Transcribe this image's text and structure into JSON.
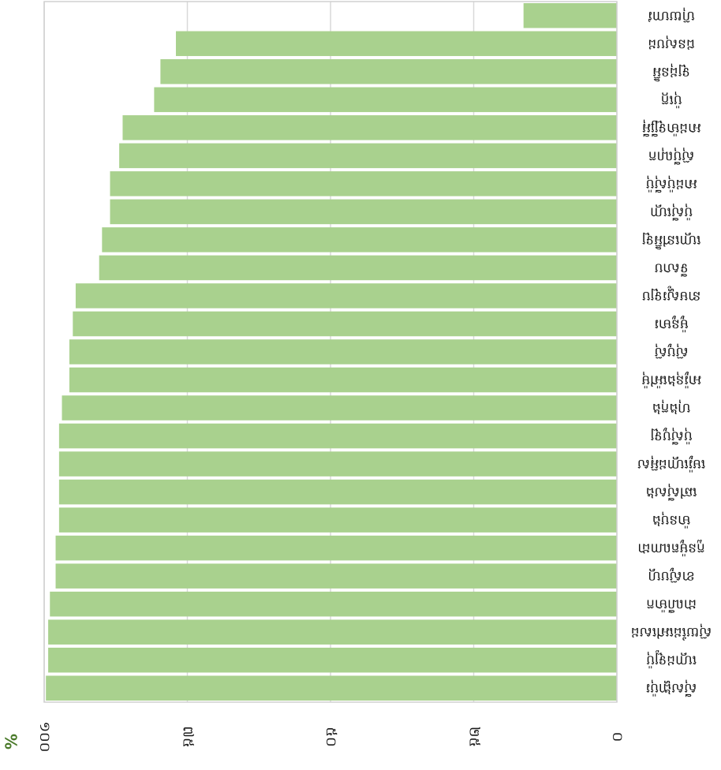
{
  "chart_data": {
    "type": "bar",
    "orientation": "horizontal",
    "rotated_view": "image rotated 180 degrees; x axis increases right-to-left, labels read upside-down",
    "categories": [
      "ស៊ីសង្ហាប៉ុរ",
      "ហ្គោដឡូប៉ុ",
      "ស៊ុយដែអៅសេដ",
      "ដាណឺម៉ាក",
      "ខាស៊ូបហ្គ",
      "កួនម៉ូតណាដា",
      "ម៉ានបុង",
      "ឆៅស៊ីសង",
      "មេរ៉ូហ្គោដអ៊ុស",
      "ប៉ុស៊ីបូឡ",
      "ហុងកុង",
      "អារ៉ូនុងអ៉ៅម៉ុ",
      "ស៊ុបូស៊ុ",
      "ម៉ូនូមារ",
      "នាមស្ហូរឡប",
      "ទីសាប",
      "ហ្គោនៅអ៊ិឡ",
      "ប៉ុស៊ីហ្គោ",
      "អាដប៉ុស៊ីប៉ុ",
      "ស៊ុប៉ីណុក",
      "អាដម៉ាឡ្សីអ៉ី",
      "ប៉ុក្កេ",
      "ឡដុនអ៊ិ",
      "ជនសុបដ",
      "ហ៊ុយហាវ"
    ],
    "values": [
      99.7,
      99.3,
      99.3,
      99.0,
      98.0,
      98.0,
      97.4,
      97.4,
      97.4,
      97.4,
      96.9,
      95.6,
      95.6,
      95.0,
      94.5,
      90.4,
      89.9,
      88.5,
      88.5,
      86.9,
      86.3,
      80.8,
      79.7,
      77.0,
      16.3
    ],
    "xlim": [
      0,
      100
    ],
    "ticks": [
      "០",
      "២៥",
      "៥០",
      "៧៥",
      "១០០"
    ],
    "tick_values": [
      0,
      25,
      50,
      75,
      100
    ],
    "xlabel": "%",
    "ylabel": "",
    "title": "",
    "grid": true,
    "bar_color": "#a9d18e",
    "axis_label_color": "#4a7a2a"
  }
}
